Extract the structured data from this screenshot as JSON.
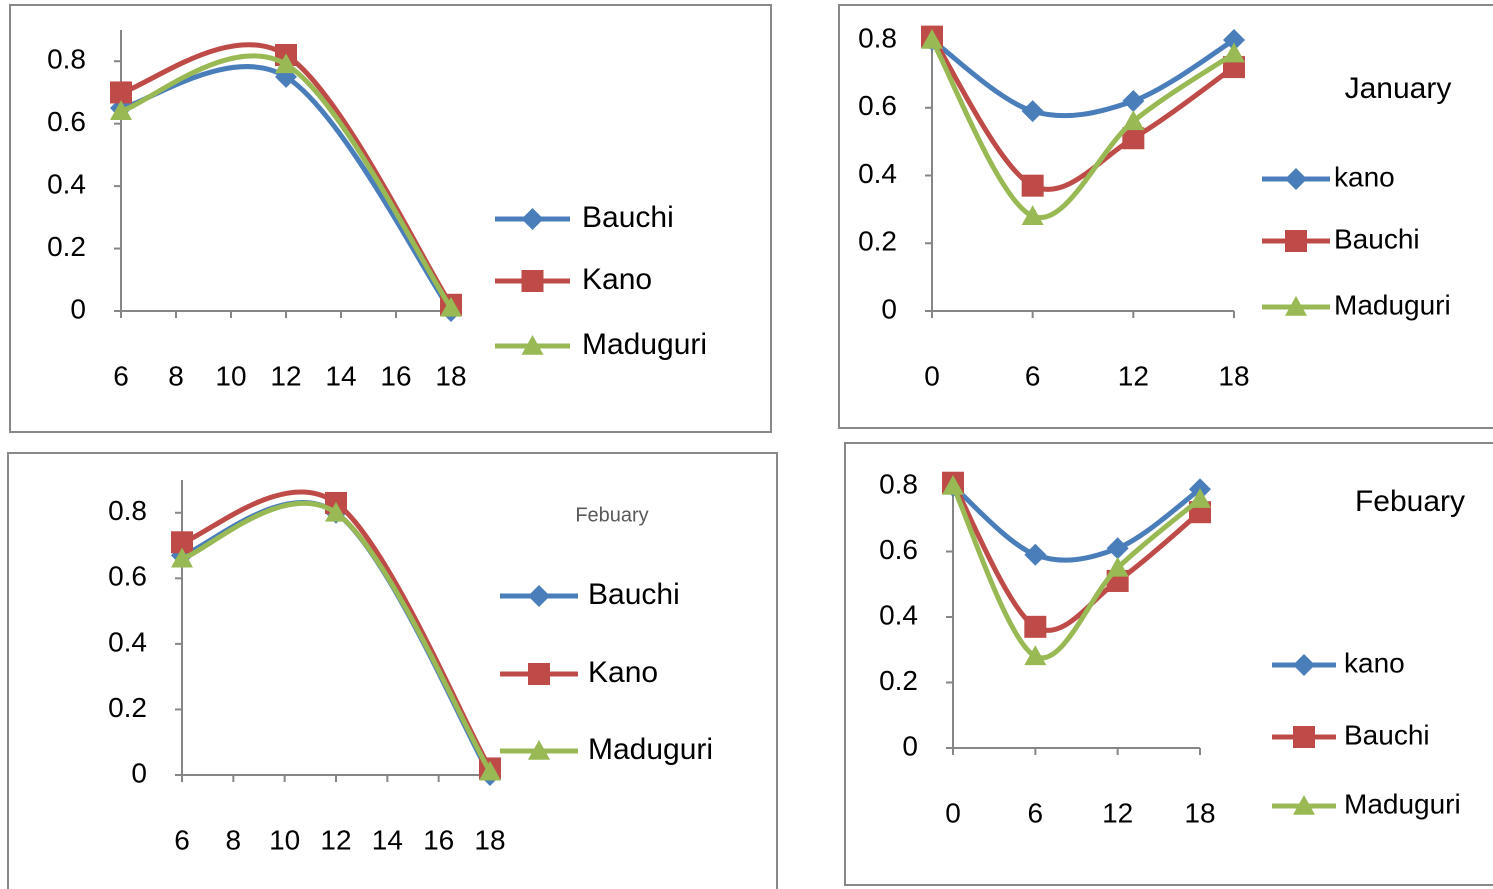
{
  "chart_data": [
    {
      "type": "line",
      "x": [
        6,
        12,
        18
      ],
      "xlim": [
        6,
        18
      ],
      "xticks": [
        6,
        8,
        10,
        12,
        14,
        16,
        18
      ],
      "ylim": [
        0,
        0.9
      ],
      "yticks": [
        0,
        0.2,
        0.4,
        0.6,
        0.8
      ],
      "series": [
        {
          "name": "Bauchi",
          "color": "#4a7ebb",
          "values": [
            0.65,
            0.75,
            0
          ]
        },
        {
          "name": "Kano",
          "color": "#be4b48",
          "values": [
            0.7,
            0.82,
            0.02
          ]
        },
        {
          "name": "Maduguri",
          "color": "#98b954",
          "values": [
            0.64,
            0.79,
            0.01
          ]
        }
      ]
    },
    {
      "type": "line",
      "title": "January",
      "x": [
        0,
        6,
        12,
        18
      ],
      "xlim": [
        0,
        18
      ],
      "xticks": [
        0,
        6,
        12,
        18
      ],
      "ylim": [
        0,
        0.8
      ],
      "yticks": [
        0,
        0.2,
        0.4,
        0.6,
        0.8
      ],
      "series": [
        {
          "name": "kano",
          "color": "#4a7ebb",
          "values": [
            0.8,
            0.59,
            0.62,
            0.8
          ]
        },
        {
          "name": "Bauchi",
          "color": "#be4b48",
          "values": [
            0.81,
            0.37,
            0.51,
            0.72
          ]
        },
        {
          "name": "Maduguri",
          "color": "#98b954",
          "values": [
            0.8,
            0.28,
            0.56,
            0.76
          ]
        }
      ]
    },
    {
      "type": "line",
      "title": "Febuary",
      "x": [
        6,
        12,
        18
      ],
      "xlim": [
        6,
        18
      ],
      "xticks": [
        6,
        8,
        10,
        12,
        14,
        16,
        18
      ],
      "ylim": [
        0,
        0.9
      ],
      "yticks": [
        0,
        0.2,
        0.4,
        0.6,
        0.8
      ],
      "series": [
        {
          "name": "Bauchi",
          "color": "#4a7ebb",
          "values": [
            0.67,
            0.8,
            0
          ]
        },
        {
          "name": "Kano",
          "color": "#be4b48",
          "values": [
            0.71,
            0.83,
            0.02
          ]
        },
        {
          "name": "Maduguri",
          "color": "#98b954",
          "values": [
            0.66,
            0.8,
            0.01
          ]
        }
      ]
    },
    {
      "type": "line",
      "title": "Febuary",
      "x": [
        0,
        6,
        12,
        18
      ],
      "xlim": [
        0,
        18
      ],
      "xticks": [
        0,
        6,
        12,
        18
      ],
      "ylim": [
        0,
        0.8
      ],
      "yticks": [
        0,
        0.2,
        0.4,
        0.6,
        0.8
      ],
      "series": [
        {
          "name": "kano",
          "color": "#4a7ebb",
          "values": [
            0.8,
            0.59,
            0.61,
            0.79
          ]
        },
        {
          "name": "Bauchi",
          "color": "#be4b48",
          "values": [
            0.81,
            0.37,
            0.51,
            0.72
          ]
        },
        {
          "name": "Maduguri",
          "color": "#98b954",
          "values": [
            0.8,
            0.28,
            0.55,
            0.76
          ]
        }
      ]
    }
  ]
}
